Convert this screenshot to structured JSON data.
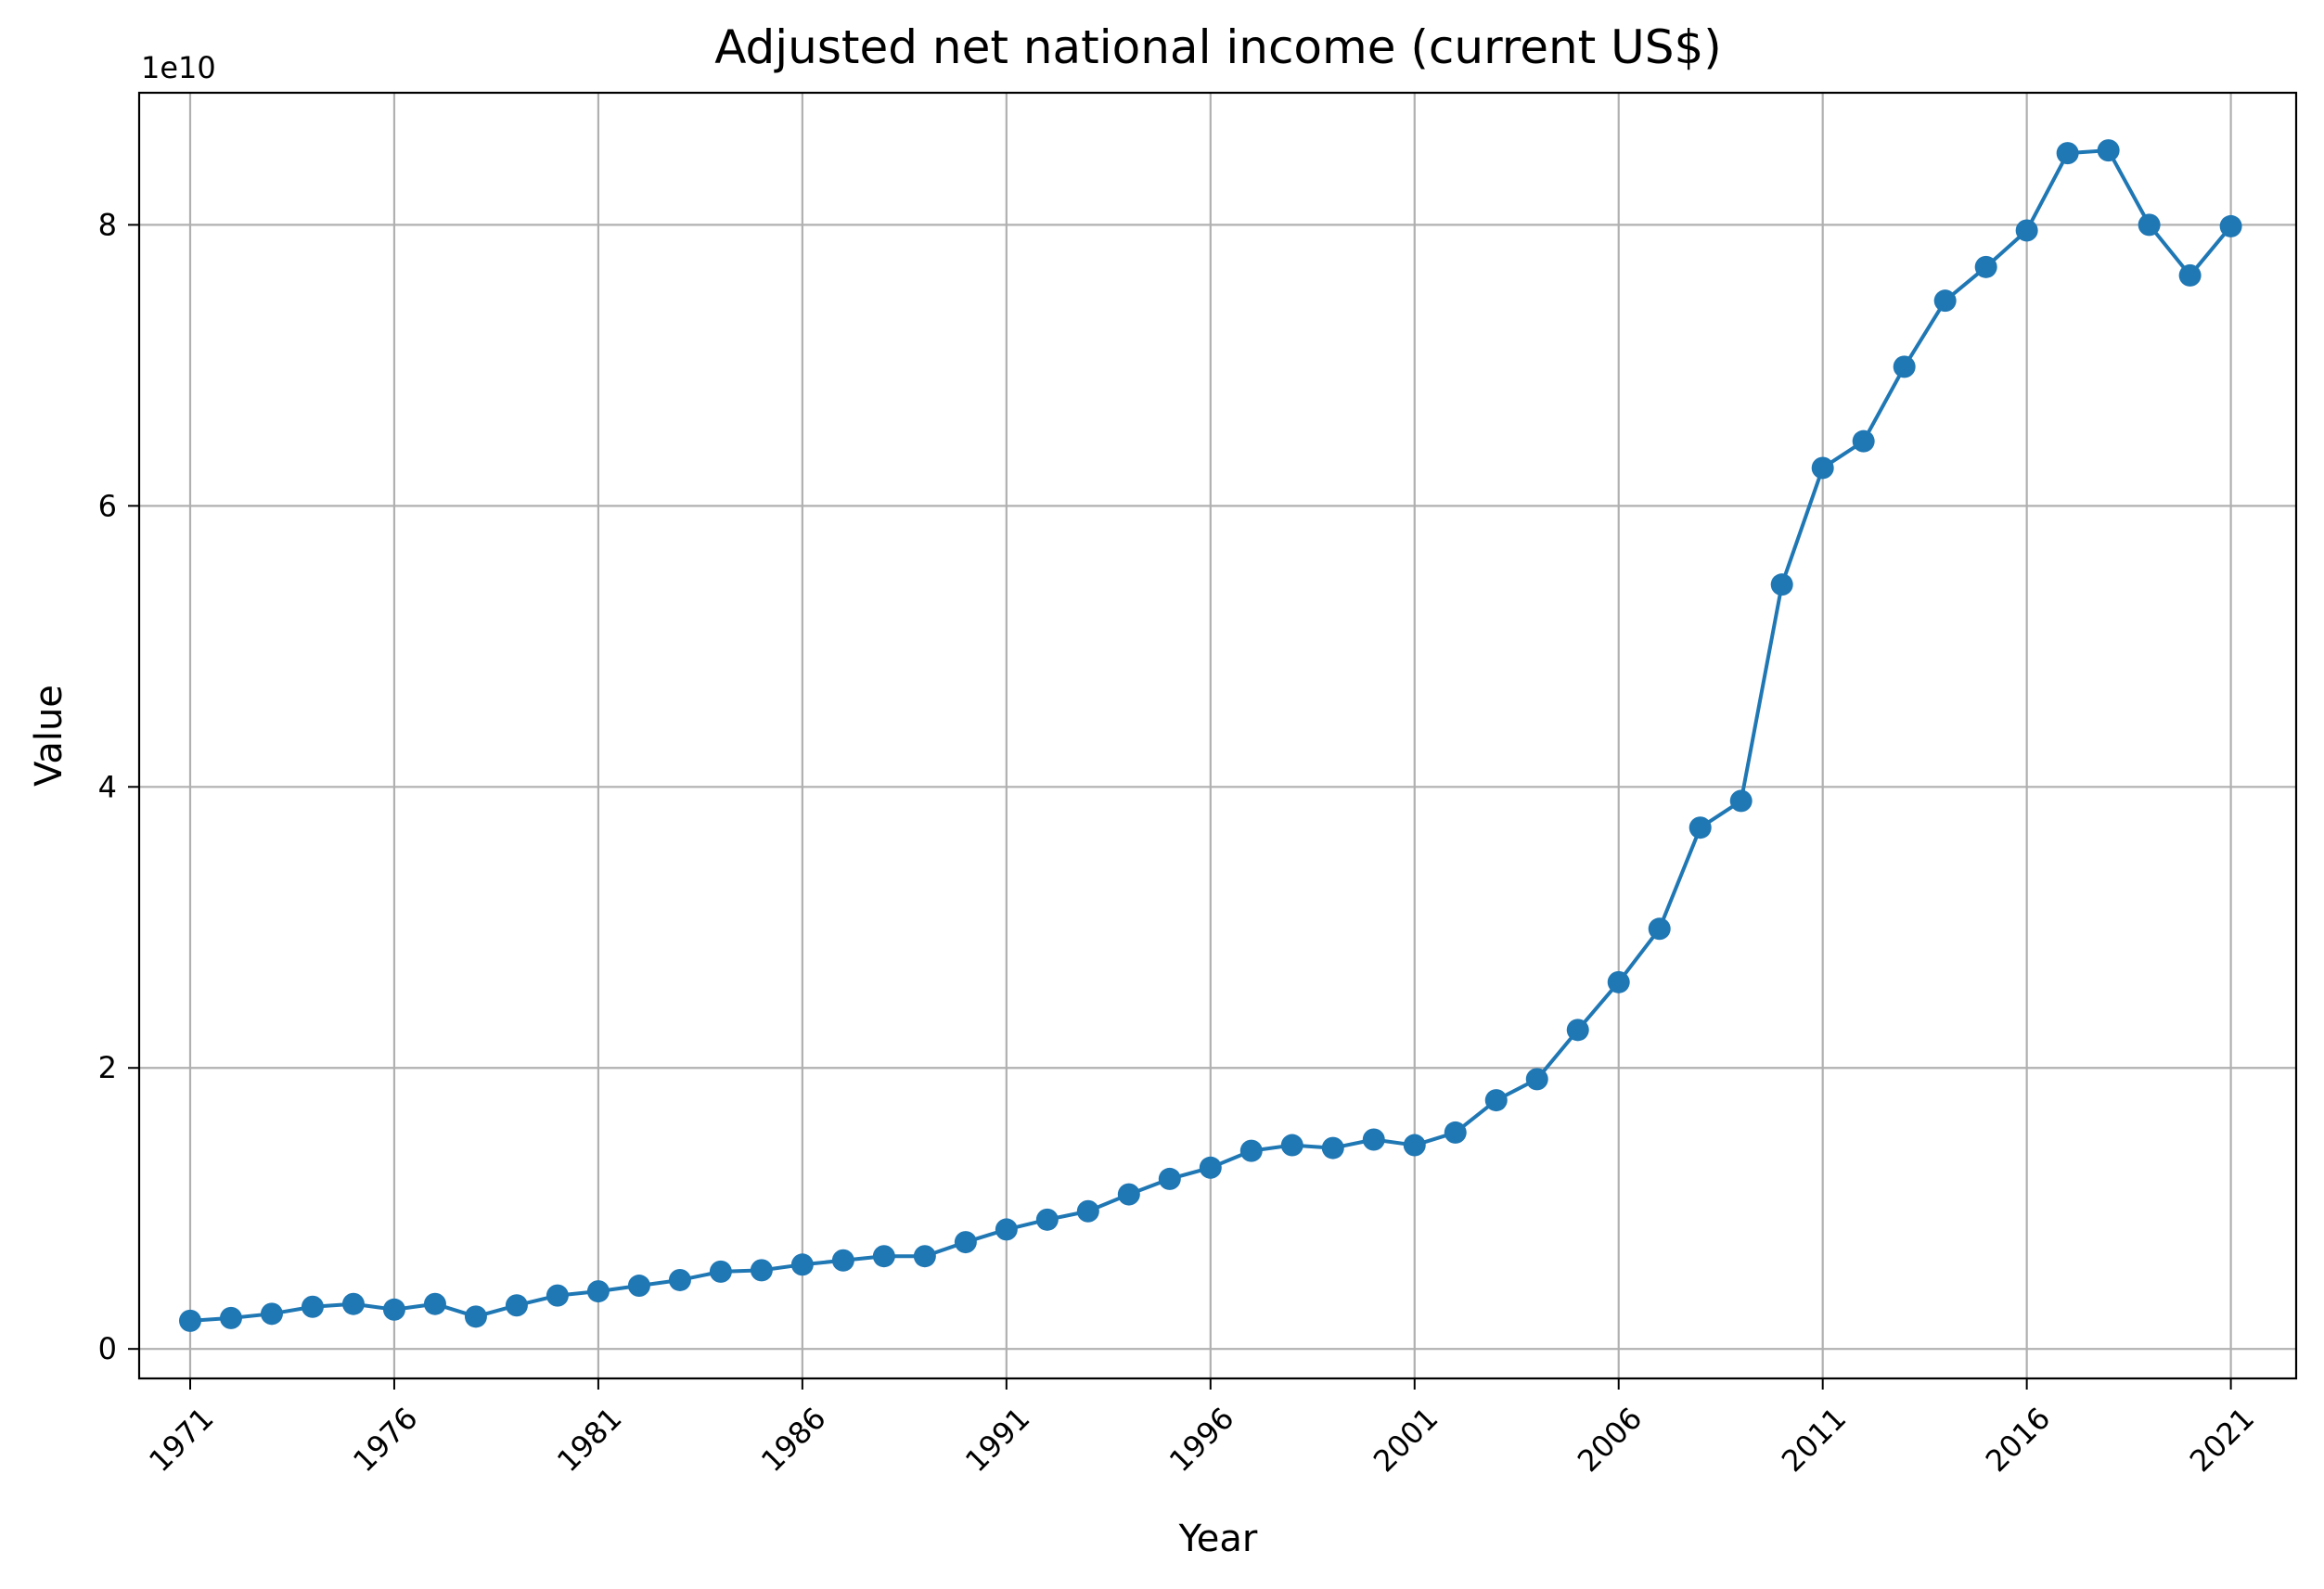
{
  "chart_data": {
    "type": "line",
    "title": "Adjusted net national income (current US$)",
    "xlabel": "Year",
    "ylabel": "Value",
    "y_offset_label": "1e10",
    "xlim": [
      1969.75,
      2022.6
    ],
    "ylim": [
      -2.1,
      89.4
    ],
    "x_ticks": [
      1971,
      1976,
      1981,
      1986,
      1991,
      1996,
      2001,
      2006,
      2011,
      2016,
      2021
    ],
    "x_tick_labels": [
      "1971",
      "1976",
      "1981",
      "1986",
      "1991",
      "1996",
      "2001",
      "2006",
      "2011",
      "2016",
      "2021"
    ],
    "y_ticks": [
      0,
      20,
      40,
      60,
      80
    ],
    "y_tick_labels": [
      "0",
      "2",
      "4",
      "6",
      "8"
    ],
    "grid": true,
    "line_color": "#1f77b4",
    "marker": "circle",
    "series": [
      {
        "x": [
          1971,
          1972,
          1973,
          1974,
          1975,
          1976,
          1977,
          1978,
          1979,
          1980,
          1981,
          1982,
          1983,
          1984,
          1985,
          1986,
          1987,
          1988,
          1989,
          1990,
          1991,
          1992,
          1993,
          1994,
          1995,
          1996,
          1997,
          1998,
          1999,
          2000,
          2001,
          2002,
          2003,
          2004,
          2005,
          2006,
          2007,
          2008,
          2009,
          2010,
          2011,
          2012,
          2013,
          2014,
          2015,
          2016,
          2017,
          2018,
          2019,
          2020,
          2021
        ],
        "values": [
          2.0,
          2.2,
          2.5,
          3.0,
          3.2,
          2.8,
          3.2,
          2.3,
          3.1,
          3.8,
          4.1,
          4.5,
          4.9,
          5.5,
          5.6,
          6.0,
          6.3,
          6.6,
          6.6,
          7.6,
          8.5,
          9.2,
          9.8,
          11.0,
          12.1,
          12.9,
          14.1,
          14.5,
          14.3,
          14.9,
          14.5,
          15.4,
          17.7,
          19.2,
          22.7,
          26.1,
          29.9,
          37.1,
          39.0,
          54.4,
          62.7,
          64.6,
          69.9,
          74.6,
          77.0,
          79.6,
          85.1,
          85.3,
          80.0,
          76.4,
          79.9
        ]
      }
    ]
  }
}
